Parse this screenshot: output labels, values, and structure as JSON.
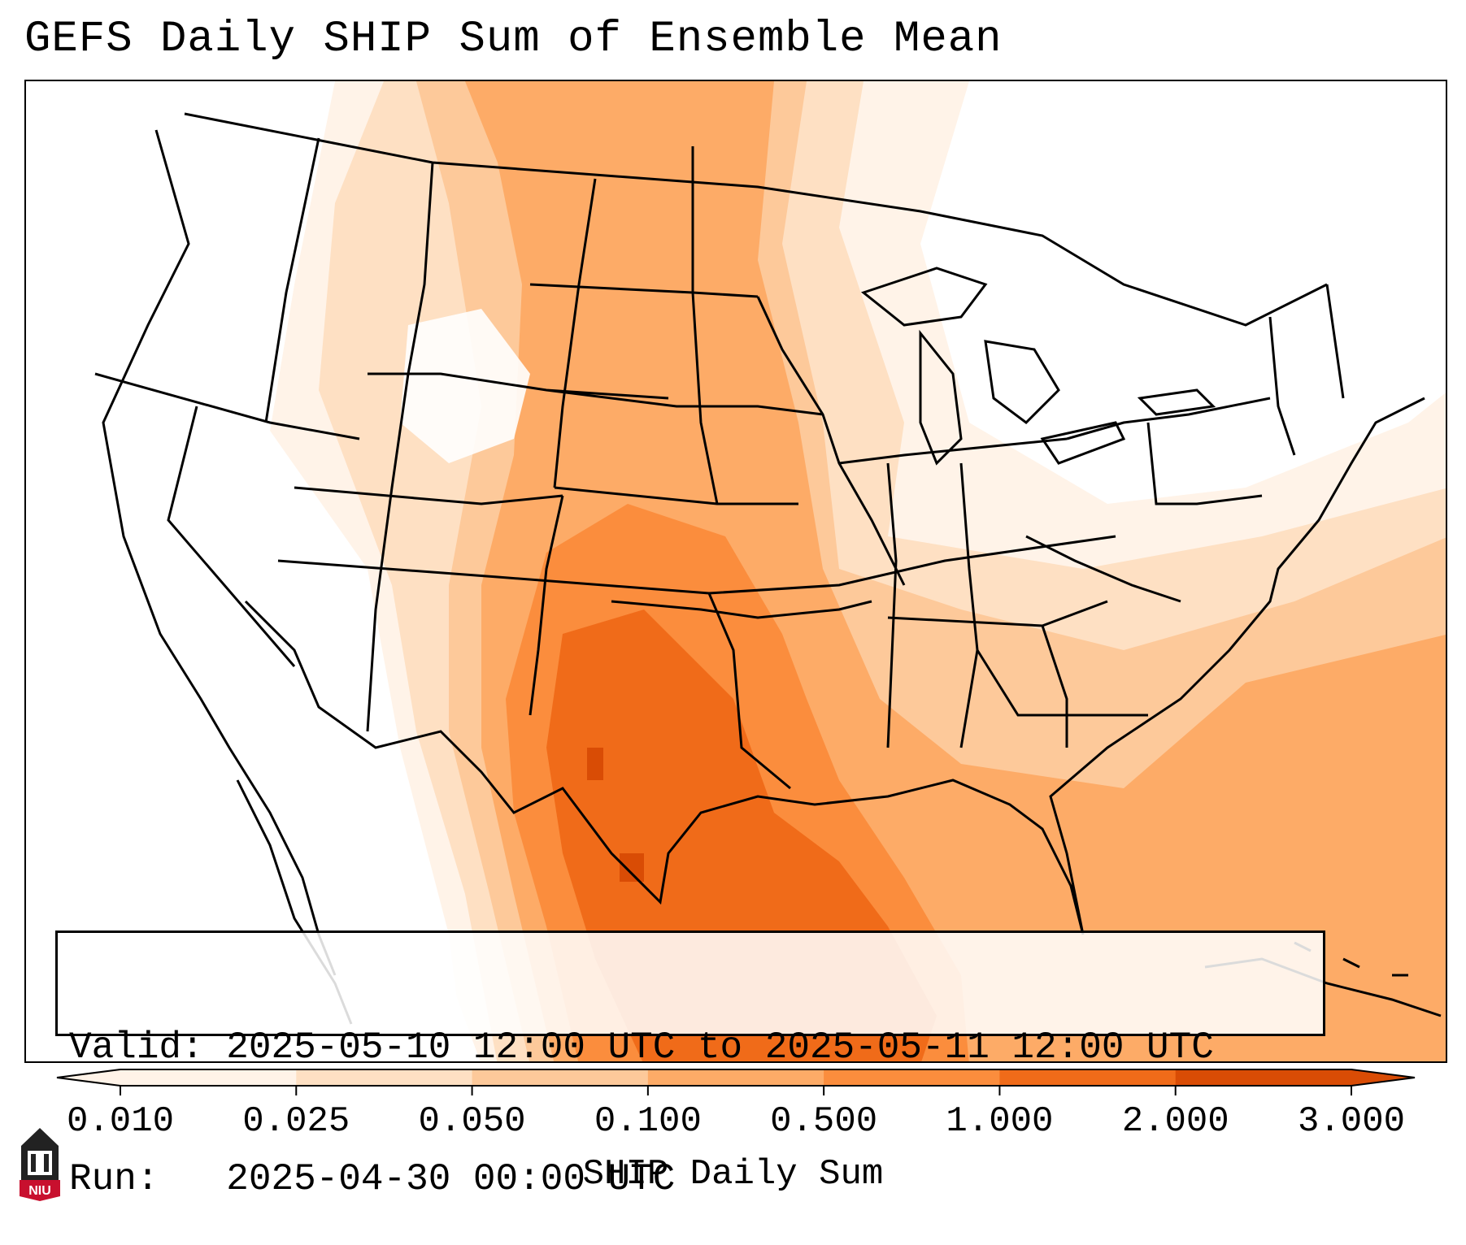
{
  "title": "GEFS Daily SHIP Sum of Ensemble Mean",
  "info": {
    "valid_label": "Valid:",
    "valid_value": "2025-05-10 12:00 UTC to 2025-05-11 12:00 UTC",
    "run_label": "Run:",
    "run_value": "2025-04-30 00:00 UTC"
  },
  "colorbar": {
    "label": "SHIP Daily Sum",
    "ticks": [
      "0.010",
      "0.025",
      "0.050",
      "0.100",
      "0.500",
      "1.000",
      "2.000",
      "3.000"
    ],
    "colors": [
      "#fff3e8",
      "#fee0c3",
      "#fdc99a",
      "#fdab67",
      "#fb8d3d",
      "#f06b19",
      "#d94c05"
    ],
    "extend": "both"
  },
  "logo": {
    "text": "NIU",
    "name": "niu-logo"
  },
  "map": {
    "projection": "Lambert Conformal, CONUS",
    "region": "Contiguous United States",
    "field": "SHIP Daily Sum (GEFS ensemble mean)"
  }
}
